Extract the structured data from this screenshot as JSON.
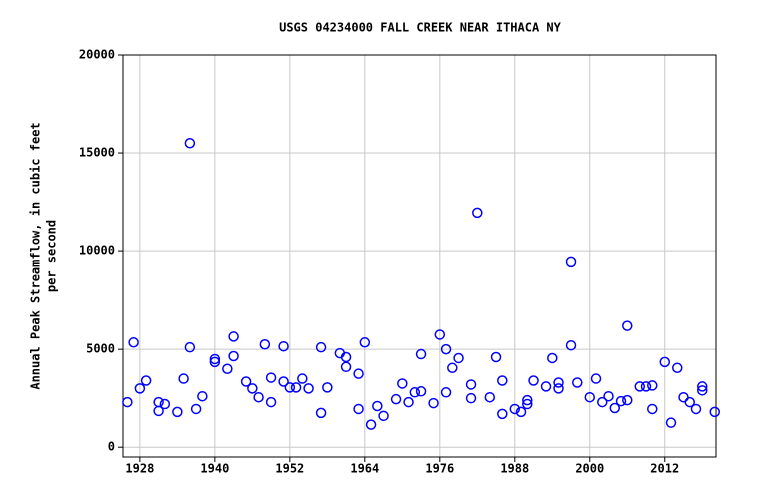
{
  "chart_data": {
    "type": "scatter",
    "title": "USGS 04234000 FALL CREEK NEAR ITHACA NY",
    "ylabel": [
      "Annual Peak Streamflow, in cubic feet",
      "per second"
    ],
    "color": "#0000ff",
    "grid": true,
    "xlim": [
      1925.3,
      2020.2
    ],
    "ylim": [
      -500,
      20000
    ],
    "xticks": [
      1928,
      1940,
      1952,
      1964,
      1976,
      1988,
      2000,
      2012
    ],
    "yticks": [
      0,
      5000,
      10000,
      15000,
      20000
    ],
    "x": [
      1926,
      1927,
      1928,
      1929,
      1931,
      1931,
      1932,
      1934,
      1935,
      1936,
      1936,
      1937,
      1938,
      1940,
      1940,
      1942,
      1943,
      1943,
      1945,
      1946,
      1947,
      1948,
      1949,
      1949,
      1951,
      1951,
      1952,
      1953,
      1954,
      1955,
      1957,
      1957,
      1958,
      1960,
      1961,
      1961,
      1963,
      1963,
      1964,
      1965,
      1966,
      1967,
      1969,
      1970,
      1971,
      1972,
      1973,
      1973,
      1975,
      1976,
      1977,
      1977,
      1978,
      1979,
      1981,
      1981,
      1982,
      1984,
      1985,
      1986,
      1986,
      1988,
      1989,
      1990,
      1990,
      1991,
      1993,
      1994,
      1995,
      1995,
      1997,
      1997,
      1998,
      2000,
      2001,
      2002,
      2003,
      2004,
      2005,
      2006,
      2006,
      2008,
      2009,
      2010,
      2010,
      2012,
      2013,
      2014,
      2015,
      2016,
      2017,
      2018,
      2018,
      2020
    ],
    "values": [
      2300,
      5350,
      3000,
      3400,
      2300,
      1850,
      2200,
      1800,
      3500,
      15500,
      5100,
      1950,
      2600,
      4500,
      4350,
      4000,
      4650,
      5650,
      3350,
      3000,
      2550,
      5250,
      3550,
      2300,
      5150,
      3350,
      3050,
      3050,
      3500,
      3000,
      5100,
      1750,
      3050,
      4800,
      4600,
      4100,
      1950,
      3750,
      5350,
      1150,
      2100,
      1600,
      2450,
      3250,
      2300,
      2800,
      4750,
      2850,
      2250,
      5750,
      2800,
      5000,
      4050,
      4550,
      3200,
      2500,
      11950,
      2550,
      4600,
      1700,
      3400,
      1950,
      1800,
      2200,
      2400,
      3400,
      3100,
      4550,
      3000,
      3300,
      9450,
      5200,
      3300,
      2550,
      3500,
      2300,
      2600,
      2000,
      2350,
      6200,
      2400,
      3100,
      3100,
      1950,
      3150,
      4350,
      1250,
      4050,
      2550,
      2300,
      1950,
      3100,
      2900,
      1800
    ]
  }
}
